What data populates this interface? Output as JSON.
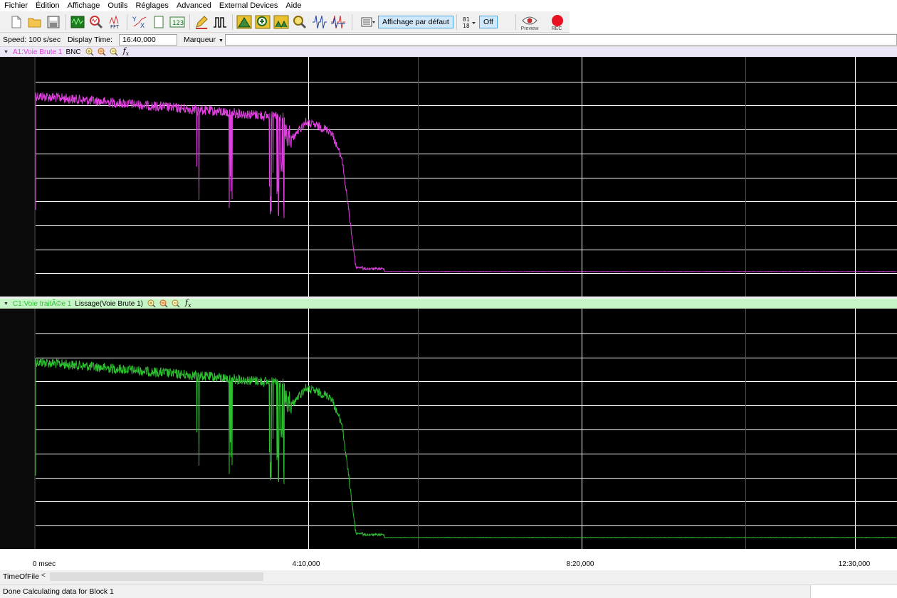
{
  "menu": [
    "Fichier",
    "Édition",
    "Affichage",
    "Outils",
    "Réglages",
    "Advanced",
    "External Devices",
    "Aide"
  ],
  "toolbar": {
    "default_view_label": "Affichage par défaut",
    "off_label": "Off",
    "preview_label": "Preview",
    "rec_label": "REC",
    "icons": [
      "new-file-icon",
      "open-folder-icon",
      "save-icon",
      "waveform-view-icon",
      "zoom-analysis-icon",
      "fft-icon",
      "xy-plot-icon",
      "page-icon",
      "display-123-icon",
      "pencil-icon",
      "pulse-icon",
      "peak-detect-icon",
      "zoom-in-peak-icon",
      "zoom-fit-icon",
      "magnify-icon",
      "spike-icon",
      "spike-overlay-icon",
      "list-menu-icon",
      "digits-icon"
    ],
    "accent": "#4aa3df",
    "rec_color": "#e81123"
  },
  "info": {
    "speed": "Speed: 100 s/sec",
    "display_time_label": "Display Time:",
    "display_time_value": "16:40,000",
    "marker_label": "Marqueur"
  },
  "channel_a": {
    "name": "A1:Voie Brute 1",
    "extra": "BNC",
    "color": "#e040e0"
  },
  "channel_c": {
    "name": "C1:Voie traitÃ©e 1",
    "extra": "Lissage(Voie Brute 1)",
    "color": "#2cc030"
  },
  "time_axis": {
    "ticks": [
      "0 msec",
      "4:10,000",
      "8:20,000",
      "12:30,000"
    ]
  },
  "scroll": {
    "label": "TimeOfFile"
  },
  "status": {
    "text": "Done Calculating data for Block 1"
  },
  "colors": {
    "grid": "#ffffff",
    "marker_line": "#c0201a",
    "plot_bg": "#000000"
  }
}
